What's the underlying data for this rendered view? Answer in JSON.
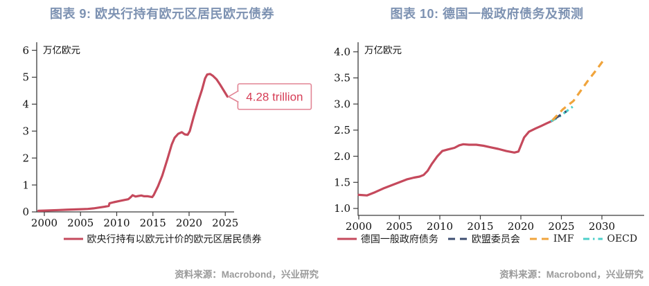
{
  "chart_data": [
    {
      "type": "line",
      "title": "图表 9:  欧央行持有欧元区居民欧元债券",
      "unit": "万亿欧元",
      "source": "资料来源：Macrobond，兴业研究",
      "ylim": [
        0,
        6
      ],
      "xlim": [
        1999,
        2026.5
      ],
      "grid": false,
      "legend_position": "bottom",
      "y_ticks": [
        {
          "v": 0,
          "t": "0"
        },
        {
          "v": 1,
          "t": "1"
        },
        {
          "v": 2,
          "t": "2"
        },
        {
          "v": 3,
          "t": "3"
        },
        {
          "v": 4,
          "t": "4"
        },
        {
          "v": 5,
          "t": "5"
        },
        {
          "v": 6,
          "t": "6"
        }
      ],
      "x_ticks": [
        {
          "v": 2000,
          "t": "2000"
        },
        {
          "v": 2005,
          "t": "2005"
        },
        {
          "v": 2010,
          "t": "2010"
        },
        {
          "v": 2015,
          "t": "2015"
        },
        {
          "v": 2020,
          "t": "2020"
        },
        {
          "v": 2025,
          "t": "2025"
        }
      ],
      "annotation": {
        "text": "4.28 trillion",
        "x": 2025.3,
        "y": 4.28,
        "text_color": "#d63c55",
        "border_color": "#e28494"
      },
      "series": [
        {
          "name": "欧央行持有以欧元计价的欧元区居民债券",
          "color": "#c5495c",
          "dash": "solid",
          "points": [
            [
              1999.2,
              0.04
            ],
            [
              2000,
              0.05
            ],
            [
              2001,
              0.06
            ],
            [
              2002,
              0.07
            ],
            [
              2003,
              0.08
            ],
            [
              2004,
              0.09
            ],
            [
              2005,
              0.1
            ],
            [
              2006,
              0.11
            ],
            [
              2006.8,
              0.13
            ],
            [
              2007.5,
              0.16
            ],
            [
              2008.3,
              0.19
            ],
            [
              2008.9,
              0.22
            ],
            [
              2009.0,
              0.32
            ],
            [
              2009.6,
              0.36
            ],
            [
              2010.3,
              0.4
            ],
            [
              2011.0,
              0.44
            ],
            [
              2011.6,
              0.47
            ],
            [
              2011.9,
              0.54
            ],
            [
              2012.2,
              0.62
            ],
            [
              2012.6,
              0.57
            ],
            [
              2013.0,
              0.59
            ],
            [
              2013.4,
              0.61
            ],
            [
              2013.8,
              0.58
            ],
            [
              2014.3,
              0.58
            ],
            [
              2014.9,
              0.55
            ],
            [
              2015.1,
              0.62
            ],
            [
              2015.7,
              0.95
            ],
            [
              2016.3,
              1.35
            ],
            [
              2017.0,
              1.95
            ],
            [
              2017.6,
              2.5
            ],
            [
              2018.0,
              2.75
            ],
            [
              2018.5,
              2.9
            ],
            [
              2019.0,
              2.96
            ],
            [
              2019.4,
              2.88
            ],
            [
              2019.8,
              2.86
            ],
            [
              2020.1,
              3.0
            ],
            [
              2020.6,
              3.5
            ],
            [
              2021.2,
              4.05
            ],
            [
              2021.8,
              4.55
            ],
            [
              2022.2,
              4.95
            ],
            [
              2022.5,
              5.1
            ],
            [
              2022.9,
              5.12
            ],
            [
              2023.3,
              5.05
            ],
            [
              2023.8,
              4.92
            ],
            [
              2024.3,
              4.72
            ],
            [
              2024.8,
              4.5
            ],
            [
              2025.3,
              4.28
            ]
          ]
        }
      ]
    },
    {
      "type": "line",
      "title": "图表 10: 德国一般政府债务及预测",
      "unit": "万亿欧元",
      "source": "资料来源：Macrobond，兴业研究",
      "ylim": [
        1.0,
        4.0
      ],
      "xlim": [
        1999.5,
        2031.5
      ],
      "grid": false,
      "legend_position": "bottom",
      "y_ticks": [
        {
          "v": 1,
          "t": "1.0"
        },
        {
          "v": 1.5,
          "t": "1.5"
        },
        {
          "v": 2,
          "t": "2.0"
        },
        {
          "v": 2.5,
          "t": "2.5"
        },
        {
          "v": 3,
          "t": "3.0"
        },
        {
          "v": 3.5,
          "t": "3.5"
        },
        {
          "v": 4,
          "t": "4.0"
        }
      ],
      "x_ticks": [
        {
          "v": 2000,
          "t": "2000"
        },
        {
          "v": 2005,
          "t": "2005"
        },
        {
          "v": 2010,
          "t": "2010"
        },
        {
          "v": 2015,
          "t": "2015"
        },
        {
          "v": 2020,
          "t": "2020"
        },
        {
          "v": 2025,
          "t": "2025"
        },
        {
          "v": 2030,
          "t": "2030"
        }
      ],
      "series": [
        {
          "name": "德国一般政府债务",
          "color": "#c5495c",
          "dash": "solid",
          "points": [
            [
              2000,
              1.26
            ],
            [
              2001,
              1.25
            ],
            [
              2002,
              1.31
            ],
            [
              2003,
              1.38
            ],
            [
              2004,
              1.44
            ],
            [
              2005,
              1.5
            ],
            [
              2006,
              1.56
            ],
            [
              2006.8,
              1.59
            ],
            [
              2007.5,
              1.61
            ],
            [
              2008,
              1.64
            ],
            [
              2008.5,
              1.72
            ],
            [
              2009,
              1.85
            ],
            [
              2009.7,
              2.0
            ],
            [
              2010.3,
              2.1
            ],
            [
              2011,
              2.13
            ],
            [
              2011.8,
              2.16
            ],
            [
              2012.4,
              2.21
            ],
            [
              2012.9,
              2.23
            ],
            [
              2013.6,
              2.22
            ],
            [
              2014.5,
              2.22
            ],
            [
              2015.4,
              2.2
            ],
            [
              2016.3,
              2.17
            ],
            [
              2017.2,
              2.14
            ],
            [
              2018.2,
              2.1
            ],
            [
              2019.2,
              2.07
            ],
            [
              2019.7,
              2.09
            ],
            [
              2020.4,
              2.36
            ],
            [
              2021,
              2.47
            ],
            [
              2021.8,
              2.53
            ],
            [
              2022.5,
              2.58
            ],
            [
              2023.2,
              2.63
            ],
            [
              2023.9,
              2.68
            ]
          ]
        },
        {
          "name": "欧盟委员会",
          "color": "#3d4d70",
          "dash": "dashed",
          "points": [
            [
              2024.2,
              2.72
            ],
            [
              2025.6,
              2.86
            ]
          ]
        },
        {
          "name": "IMF",
          "color": "#f0a43c",
          "dash": "dashed",
          "points": [
            [
              2023.9,
              2.69
            ],
            [
              2025.2,
              2.9
            ],
            [
              2026.5,
              3.06
            ],
            [
              2028.2,
              3.43
            ],
            [
              2029.3,
              3.65
            ],
            [
              2030.3,
              3.86
            ]
          ]
        },
        {
          "name": "OECD",
          "color": "#4dcfca",
          "dash": "dashdot",
          "points": [
            [
              2023.7,
              2.67
            ],
            [
              2024.6,
              2.74
            ],
            [
              2026.4,
              2.95
            ]
          ]
        }
      ]
    }
  ]
}
